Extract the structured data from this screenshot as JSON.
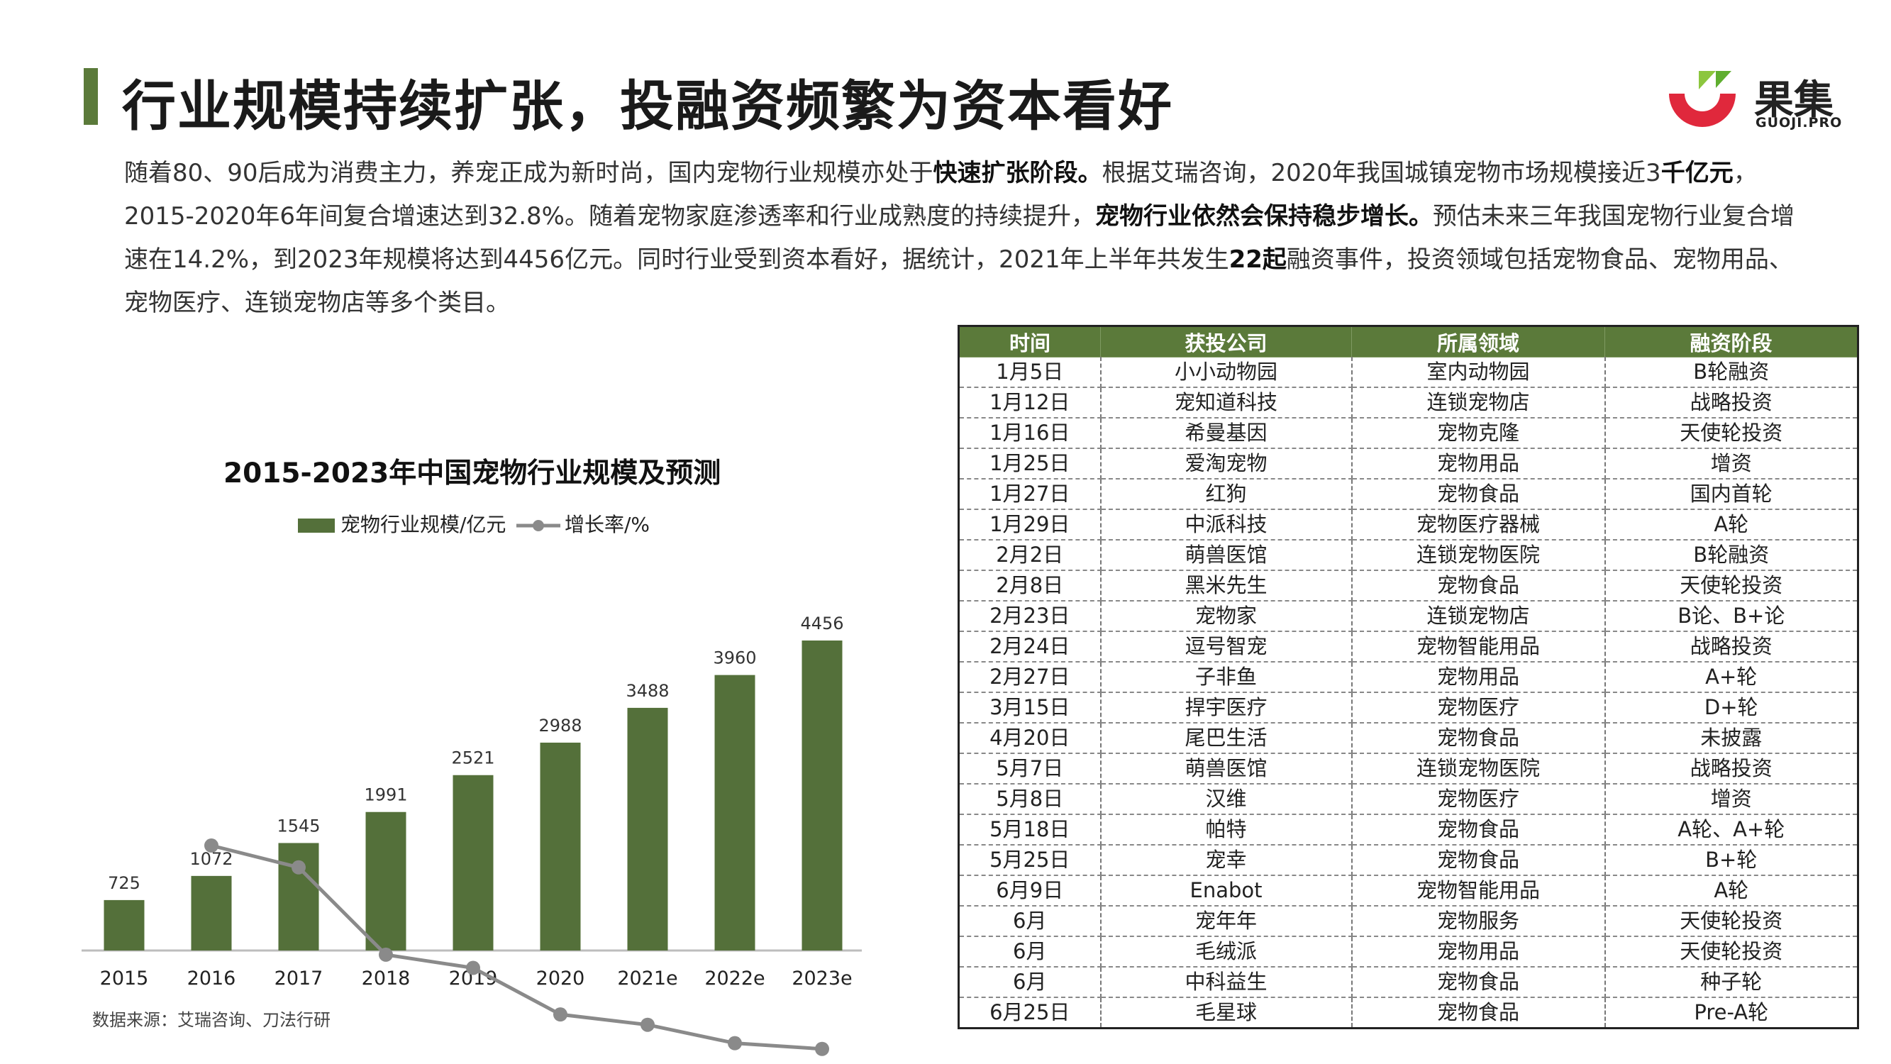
{
  "header": {
    "title": "行业规模持续扩张，投融资频繁为资本看好",
    "logo_cn": "果集",
    "logo_en": "GUOJI.PRO",
    "accent": "#5b7a3a"
  },
  "intro": {
    "p1": "随着80、90后成为消费主力，养宠正成为新时尚，国内宠物行业规模亦处于",
    "b1": "快速扩张阶段。",
    "p2": "根据艾瑞咨询，2020年我国城镇宠物市场规模接近3",
    "b2": "千亿元",
    "p3": "，2015-2020年6年间复合增速达到32.8%。随着宠物家庭渗透率和行业成熟度的持续提升，",
    "b3": "宠物行业依然会保持稳步增长。",
    "p4": "预估未来三年我国宠物行业复合增速在14.2%，到2023年规模将达到4456亿元。同时行业受到资本看好，据统计，2021年上半年共发生",
    "b4": "22起",
    "p5": "融资事件，投资领域包括宠物食品、宠物用品、宠物医疗、连锁宠物店等多个类目。"
  },
  "chart_data": {
    "type": "bar",
    "title": "2015-2023年中国宠物行业规模及预测",
    "categories": [
      "2015",
      "2016",
      "2017",
      "2018",
      "2019",
      "2020",
      "2021e",
      "2022e",
      "2023e"
    ],
    "series": [
      {
        "name": "宠物行业规模/亿元",
        "type": "bar",
        "color": "#54703a",
        "values": [
          725,
          1072,
          1545,
          1991,
          2521,
          2988,
          3488,
          3960,
          4456
        ]
      },
      {
        "name": "增长率/%",
        "type": "line",
        "color": "#8a8a8a",
        "values": [
          null,
          47.9,
          44.1,
          28.9,
          26.6,
          18.5,
          16.7,
          13.5,
          12.5
        ]
      }
    ],
    "ylim": [
      0,
      5200
    ],
    "rate_ylim": [
      0,
      100
    ],
    "grid": false,
    "legend": "top",
    "source": "数据来源：艾瑞咨询、刀法行研"
  },
  "table": {
    "headers": [
      "时间",
      "获投公司",
      "所属领域",
      "融资阶段"
    ],
    "rows": [
      [
        "1月5日",
        "小小动物园",
        "室内动物园",
        "B轮融资"
      ],
      [
        "1月12日",
        "宠知道科技",
        "连锁宠物店",
        "战略投资"
      ],
      [
        "1月16日",
        "希曼基因",
        "宠物克隆",
        "天使轮投资"
      ],
      [
        "1月25日",
        "爱淘宠物",
        "宠物用品",
        "增资"
      ],
      [
        "1月27日",
        "红狗",
        "宠物食品",
        "国内首轮"
      ],
      [
        "1月29日",
        "中派科技",
        "宠物医疗器械",
        "A轮"
      ],
      [
        "2月2日",
        "萌兽医馆",
        "连锁宠物医院",
        "B轮融资"
      ],
      [
        "2月8日",
        "黑米先生",
        "宠物食品",
        "天使轮投资"
      ],
      [
        "2月23日",
        "宠物家",
        "连锁宠物店",
        "B论、B+论"
      ],
      [
        "2月24日",
        "逗号智宠",
        "宠物智能用品",
        "战略投资"
      ],
      [
        "2月27日",
        "子非鱼",
        "宠物用品",
        "A+轮"
      ],
      [
        "3月15日",
        "捍宇医疗",
        "宠物医疗",
        "D+轮"
      ],
      [
        "4月20日",
        "尾巴生活",
        "宠物食品",
        "未披露"
      ],
      [
        "5月7日",
        "萌兽医馆",
        "连锁宠物医院",
        "战略投资"
      ],
      [
        "5月8日",
        "汉维",
        "宠物医疗",
        "增资"
      ],
      [
        "5月18日",
        "帕特",
        "宠物食品",
        "A轮、A+轮"
      ],
      [
        "5月25日",
        "宠幸",
        "宠物食品",
        "B+轮"
      ],
      [
        "6月9日",
        "Enabot",
        "宠物智能用品",
        "A轮"
      ],
      [
        "6月",
        "宠年年",
        "宠物服务",
        "天使轮投资"
      ],
      [
        "6月",
        "毛绒派",
        "宠物用品",
        "天使轮投资"
      ],
      [
        "6月",
        "中科益生",
        "宠物食品",
        "种子轮"
      ],
      [
        "6月25日",
        "毛星球",
        "宠物食品",
        "Pre-A轮"
      ]
    ]
  }
}
